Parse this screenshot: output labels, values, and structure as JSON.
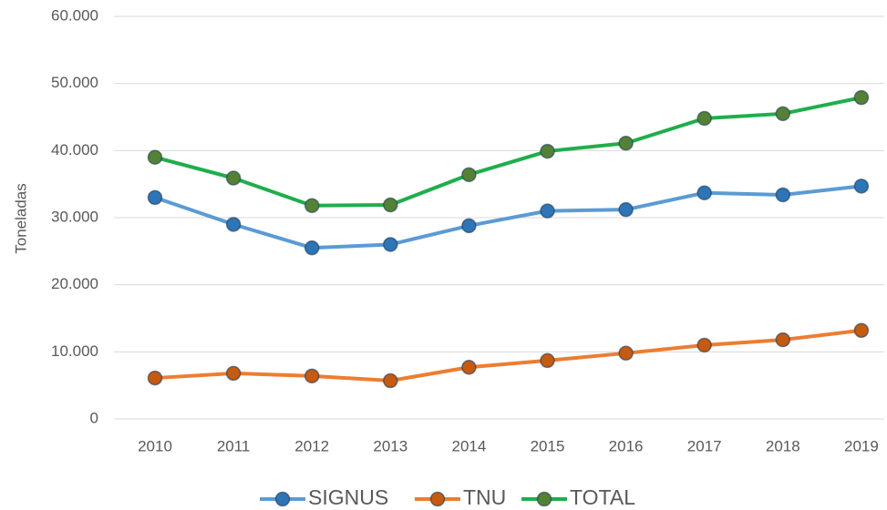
{
  "chart_data": {
    "type": "line",
    "y_label": "Toneladas",
    "categories": [
      "2010",
      "2011",
      "2012",
      "2013",
      "2014",
      "2015",
      "2016",
      "2017",
      "2018",
      "2019"
    ],
    "series": [
      {
        "name": "SIGNUS",
        "color": "#5b9bd5",
        "marker_color": "#2e75b6",
        "values": [
          33000,
          29000,
          25500,
          26000,
          28800,
          31000,
          31200,
          33700,
          33400,
          34700
        ]
      },
      {
        "name": "TNU",
        "color": "#ed7d31",
        "marker_color": "#c55a11",
        "values": [
          6100,
          6800,
          6400,
          5700,
          7700,
          8700,
          9800,
          11000,
          11800,
          13200
        ]
      },
      {
        "name": "TOTAL",
        "color": "#1fae4b",
        "marker_color": "#548235",
        "values": [
          39000,
          35900,
          31800,
          31900,
          36400,
          39900,
          41100,
          44800,
          45500,
          47900
        ]
      }
    ],
    "ylim": [
      0,
      60000
    ],
    "yticks": [
      0,
      {
        "value": 10000,
        "label": "10.000"
      },
      {
        "value": 20000,
        "label": "20.000"
      },
      {
        "value": 30000,
        "label": "30.000"
      },
      {
        "value": 40000,
        "label": "40.000"
      },
      {
        "value": 50000,
        "label": "50.000"
      },
      {
        "value": 60000,
        "label": "60.000"
      }
    ],
    "grid": true,
    "legend": "bottom"
  }
}
